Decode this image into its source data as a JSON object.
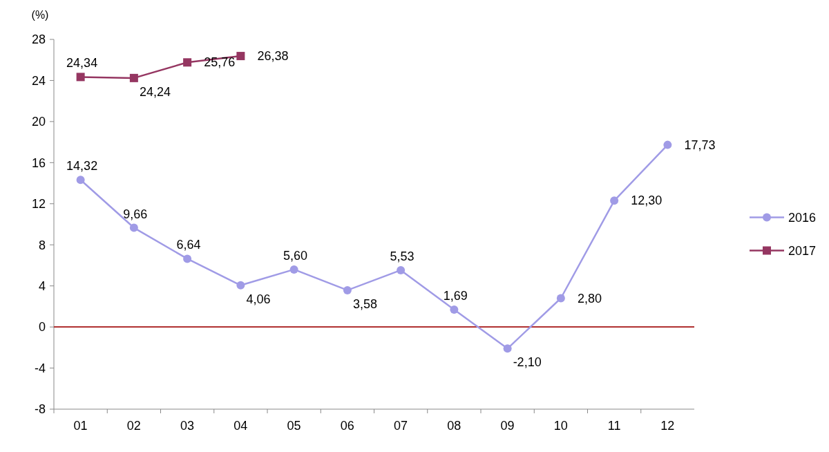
{
  "chart_data": {
    "type": "line",
    "ylabel": "(%)",
    "categories": [
      "01",
      "02",
      "03",
      "04",
      "05",
      "06",
      "07",
      "08",
      "09",
      "10",
      "11",
      "12"
    ],
    "series": [
      {
        "name": "2016",
        "color": "#a09be6",
        "marker": "circle",
        "values": [
          14.32,
          9.66,
          6.64,
          4.06,
          5.6,
          3.58,
          5.53,
          1.69,
          -2.1,
          2.8,
          12.3,
          17.73
        ],
        "value_labels": [
          "14,32",
          "9,66",
          "6,64",
          "4,06",
          "5,60",
          "3,58",
          "5,53",
          "1,69",
          "-2,10",
          "2,80",
          "12,30",
          "17,73"
        ]
      },
      {
        "name": "2017",
        "color": "#953661",
        "marker": "square",
        "values": [
          24.34,
          24.24,
          25.76,
          26.38,
          null,
          null,
          null,
          null,
          null,
          null,
          null,
          null
        ],
        "value_labels": [
          "24,34",
          "24,24",
          "25,76",
          "26,38",
          null,
          null,
          null,
          null,
          null,
          null,
          null,
          null
        ]
      }
    ],
    "ylim": [
      -8,
      28
    ],
    "yticks": [
      -8,
      -4,
      0,
      4,
      8,
      12,
      16,
      20,
      24,
      28
    ],
    "grid": false,
    "legend": "right",
    "ref_lines": [
      {
        "axis": "y",
        "value": 0,
        "color": "#b03030"
      }
    ]
  }
}
